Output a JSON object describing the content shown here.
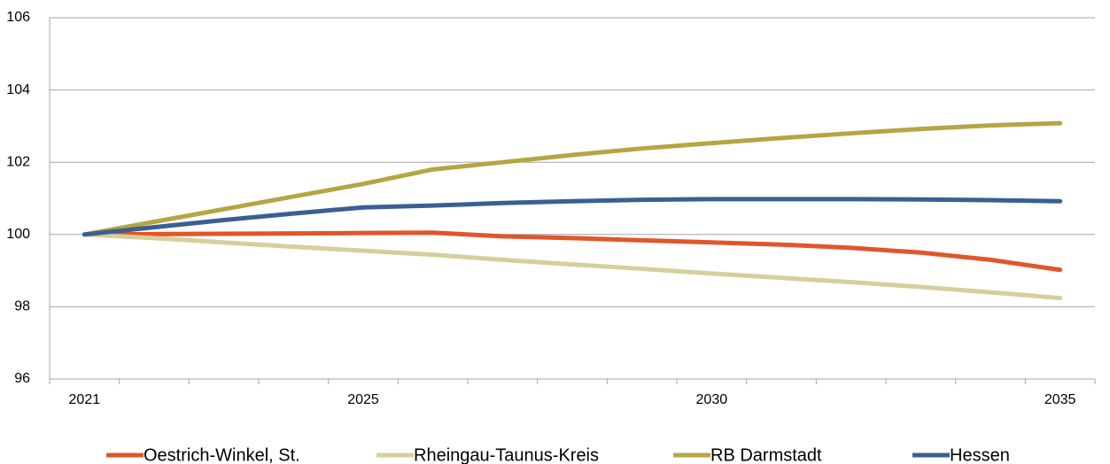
{
  "chart_data": {
    "type": "line",
    "categories": [
      "2021",
      null,
      null,
      null,
      "2025",
      null,
      null,
      null,
      null,
      "2030",
      null,
      null,
      null,
      null,
      "2035"
    ],
    "series": [
      {
        "name": "Oestrich-Winkel, St.",
        "color": "#e0562a",
        "values": [
          100,
          100.01,
          100.02,
          100.03,
          100.04,
          100.05,
          99.95,
          99.9,
          99.84,
          99.78,
          99.72,
          99.63,
          99.5,
          99.3,
          99.02
        ]
      },
      {
        "name": "Rheingau-Taunus-Kreis",
        "color": "#d6cf9a",
        "values": [
          100,
          99.9,
          99.78,
          99.66,
          99.55,
          99.44,
          99.3,
          99.17,
          99.05,
          98.92,
          98.8,
          98.68,
          98.55,
          98.4,
          98.24
        ]
      },
      {
        "name": "RB Darmstadt",
        "color": "#b4a642",
        "values": [
          100,
          100.35,
          100.7,
          101.05,
          101.4,
          101.8,
          102.0,
          102.2,
          102.38,
          102.53,
          102.67,
          102.8,
          102.92,
          103.02,
          103.08
        ]
      },
      {
        "name": "Hessen",
        "color": "#3a5f93",
        "values": [
          100,
          100.2,
          100.4,
          100.58,
          100.75,
          100.8,
          100.87,
          100.92,
          100.96,
          100.98,
          100.98,
          100.98,
          100.97,
          100.95,
          100.92
        ]
      }
    ],
    "ylim": [
      96,
      106
    ],
    "yticks": [
      96,
      98,
      100,
      102,
      104,
      106
    ],
    "grid": true,
    "legend": "bottom"
  }
}
